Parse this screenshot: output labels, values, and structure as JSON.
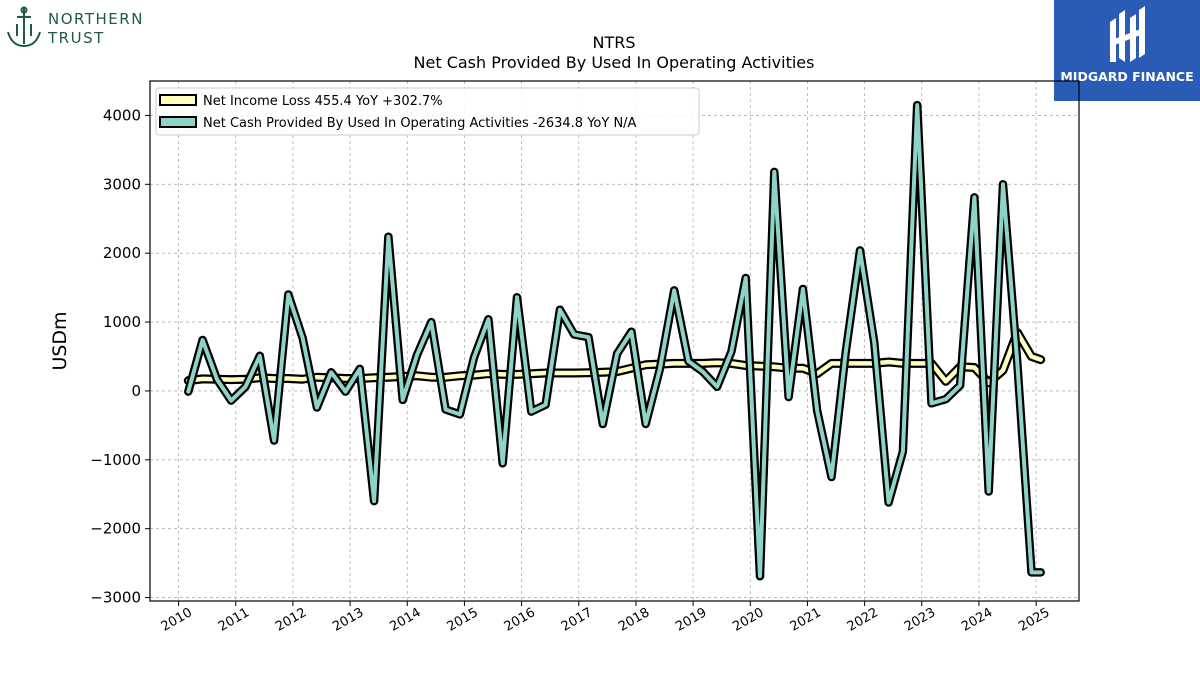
{
  "logos": {
    "left": {
      "name_line1": "NORTHERN",
      "name_line2": "TRUST",
      "color": "#1f5a46"
    },
    "right": {
      "name": "MIDGARD FINANCE",
      "background": "#2a5bb5"
    }
  },
  "chart_data": {
    "type": "line",
    "title": "NTRS",
    "subtitle": "Net Cash Provided By Used In Operating Activities",
    "ylabel": "USDm",
    "xlabel": "",
    "xlim": [
      2009.5,
      2025.75
    ],
    "ylim": [
      -3050,
      4500
    ],
    "yticks": [
      -3000,
      -2000,
      -1000,
      0,
      1000,
      2000,
      3000,
      4000
    ],
    "xticks": [
      2010,
      2011,
      2012,
      2013,
      2014,
      2015,
      2016,
      2017,
      2018,
      2019,
      2020,
      2021,
      2022,
      2023,
      2024,
      2025
    ],
    "grid": true,
    "legend_position": "top-left",
    "series": [
      {
        "name": "Net Income Loss  455.4 YoY +302.7%",
        "color": "#ffffc0",
        "x": [
          2010.17,
          2010.42,
          2010.67,
          2010.92,
          2011.17,
          2011.42,
          2011.67,
          2011.92,
          2012.17,
          2012.42,
          2012.67,
          2012.92,
          2013.17,
          2013.42,
          2013.67,
          2013.92,
          2014.17,
          2014.42,
          2014.67,
          2014.92,
          2015.17,
          2015.42,
          2015.67,
          2015.92,
          2016.17,
          2016.42,
          2016.67,
          2016.92,
          2017.17,
          2017.42,
          2017.67,
          2017.92,
          2018.17,
          2018.42,
          2018.67,
          2018.92,
          2019.17,
          2019.42,
          2019.67,
          2019.92,
          2020.17,
          2020.42,
          2020.67,
          2020.92,
          2021.17,
          2021.42,
          2021.67,
          2021.92,
          2022.17,
          2022.42,
          2022.67,
          2022.92,
          2023.17,
          2023.42,
          2023.67,
          2023.92,
          2024.17,
          2024.42,
          2024.67,
          2024.92,
          2025.08
        ],
        "values": [
          150,
          175,
          170,
          165,
          170,
          190,
          180,
          180,
          170,
          200,
          190,
          180,
          180,
          190,
          200,
          210,
          220,
          200,
          200,
          220,
          230,
          250,
          240,
          240,
          250,
          260,
          260,
          260,
          265,
          270,
          280,
          330,
          380,
          390,
          400,
          400,
          400,
          410,
          400,
          370,
          360,
          350,
          330,
          330,
          250,
          400,
          400,
          400,
          400,
          420,
          400,
          400,
          400,
          140,
          350,
          340,
          120,
          300,
          850,
          500,
          455.4
        ]
      },
      {
        "name": "Net Cash Provided By Used In Operating Activities  -2634.8 YoY N/A",
        "color": "#8dd3c7",
        "x": [
          2010.17,
          2010.42,
          2010.67,
          2010.92,
          2011.17,
          2011.42,
          2011.67,
          2011.92,
          2012.17,
          2012.42,
          2012.67,
          2012.92,
          2013.17,
          2013.42,
          2013.67,
          2013.92,
          2014.17,
          2014.42,
          2014.67,
          2014.92,
          2015.17,
          2015.42,
          2015.67,
          2015.92,
          2016.17,
          2016.42,
          2016.67,
          2016.92,
          2017.17,
          2017.42,
          2017.67,
          2017.92,
          2018.17,
          2018.42,
          2018.67,
          2018.92,
          2019.17,
          2019.42,
          2019.67,
          2019.92,
          2020.17,
          2020.42,
          2020.67,
          2020.92,
          2021.17,
          2021.42,
          2021.67,
          2021.92,
          2022.17,
          2022.42,
          2022.67,
          2022.92,
          2023.17,
          2023.42,
          2023.67,
          2023.92,
          2024.17,
          2024.42,
          2024.67,
          2024.92,
          2025.08
        ],
        "values": [
          -10,
          740,
          170,
          -140,
          60,
          510,
          -720,
          1400,
          770,
          -240,
          270,
          -10,
          320,
          -1600,
          2240,
          -130,
          520,
          1000,
          -270,
          -340,
          490,
          1040,
          -1050,
          1360,
          -300,
          -200,
          1180,
          820,
          780,
          -480,
          540,
          860,
          -480,
          320,
          1460,
          430,
          280,
          60,
          570,
          1640,
          -2690,
          3180,
          -90,
          1480,
          -290,
          -1250,
          560,
          2040,
          700,
          -1620,
          -880,
          4150,
          -180,
          -120,
          80,
          2810,
          -1460,
          3000,
          410,
          -2634.8,
          -2634.8
        ]
      }
    ]
  }
}
